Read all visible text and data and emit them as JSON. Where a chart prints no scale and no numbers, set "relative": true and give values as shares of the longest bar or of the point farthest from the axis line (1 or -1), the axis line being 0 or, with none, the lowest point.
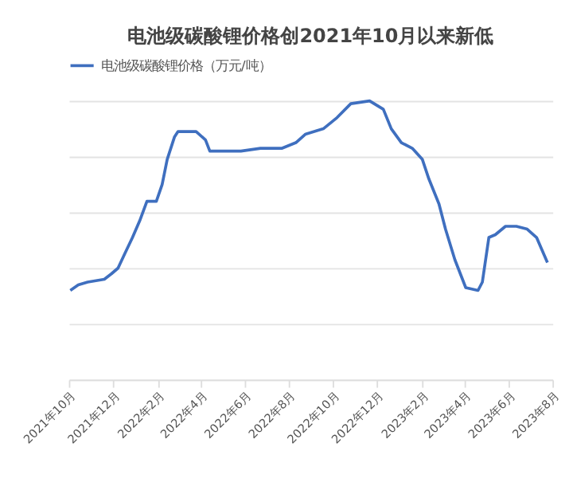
{
  "chart_data": {
    "type": "line",
    "title": "电池级碳酸锂价格创2021年10月以来新低",
    "relative": true,
    "grid": "y",
    "legend": "top",
    "line_style": "solid",
    "marker": "none",
    "x": [
      "2021-10-03",
      "2021-10-14",
      "2021-10-27",
      "2021-11-19",
      "2021-11-29",
      "2021-12-08",
      "2021-12-17",
      "2021-12-28",
      "2022-01-07",
      "2022-01-17",
      "2022-01-30",
      "2022-02-07",
      "2022-02-14",
      "2022-02-24",
      "2022-03-01",
      "2022-03-26",
      "2022-04-08",
      "2022-04-14",
      "2022-05-02",
      "2022-05-27",
      "2022-06-23",
      "2022-07-23",
      "2022-08-11",
      "2022-08-24",
      "2022-09-18",
      "2022-10-07",
      "2022-10-26",
      "2022-11-21",
      "2022-12-10",
      "2022-12-21",
      "2023-01-04",
      "2023-01-19",
      "2023-02-02",
      "2023-02-11",
      "2023-02-25",
      "2023-03-06",
      "2023-03-19",
      "2023-04-03",
      "2023-04-20",
      "2023-04-26",
      "2023-05-05",
      "2023-05-14",
      "2023-05-28",
      "2023-06-12",
      "2023-06-27",
      "2023-07-10",
      "2023-07-25"
    ],
    "xlim": [
      "2021-10-01",
      "2023-08-01"
    ],
    "xticks": [
      {
        "value": "2021-10-01",
        "label": "2021年10月"
      },
      {
        "value": "2021-12-01",
        "label": "2021年12月"
      },
      {
        "value": "2022-02-01",
        "label": "2022年2月"
      },
      {
        "value": "2022-04-01",
        "label": "2022年4月"
      },
      {
        "value": "2022-06-01",
        "label": "2022年6月"
      },
      {
        "value": "2022-08-01",
        "label": "2022年8月"
      },
      {
        "value": "2022-10-01",
        "label": "2022年10月"
      },
      {
        "value": "2022-12-01",
        "label": "2022年12月"
      },
      {
        "value": "2023-02-01",
        "label": "2023年2月"
      },
      {
        "value": "2023-04-01",
        "label": "2023年4月"
      },
      {
        "value": "2023-06-01",
        "label": "2023年6月"
      },
      {
        "value": "2023-08-01",
        "label": "2023年8月"
      }
    ],
    "series": [
      {
        "name": "电池级碳酸锂价格（万元/吨）",
        "color": "#3f6fbf",
        "values": [
          0.32,
          0.34,
          0.35,
          0.36,
          0.38,
          0.4,
          0.45,
          0.51,
          0.57,
          0.64,
          0.64,
          0.7,
          0.79,
          0.87,
          0.89,
          0.89,
          0.86,
          0.82,
          0.82,
          0.82,
          0.83,
          0.83,
          0.85,
          0.88,
          0.9,
          0.94,
          0.99,
          1,
          0.97,
          0.9,
          0.85,
          0.83,
          0.79,
          0.72,
          0.63,
          0.54,
          0.43,
          0.33,
          0.32,
          0.35,
          0.51,
          0.52,
          0.55,
          0.55,
          0.54,
          0.51,
          0.42
        ]
      }
    ]
  }
}
